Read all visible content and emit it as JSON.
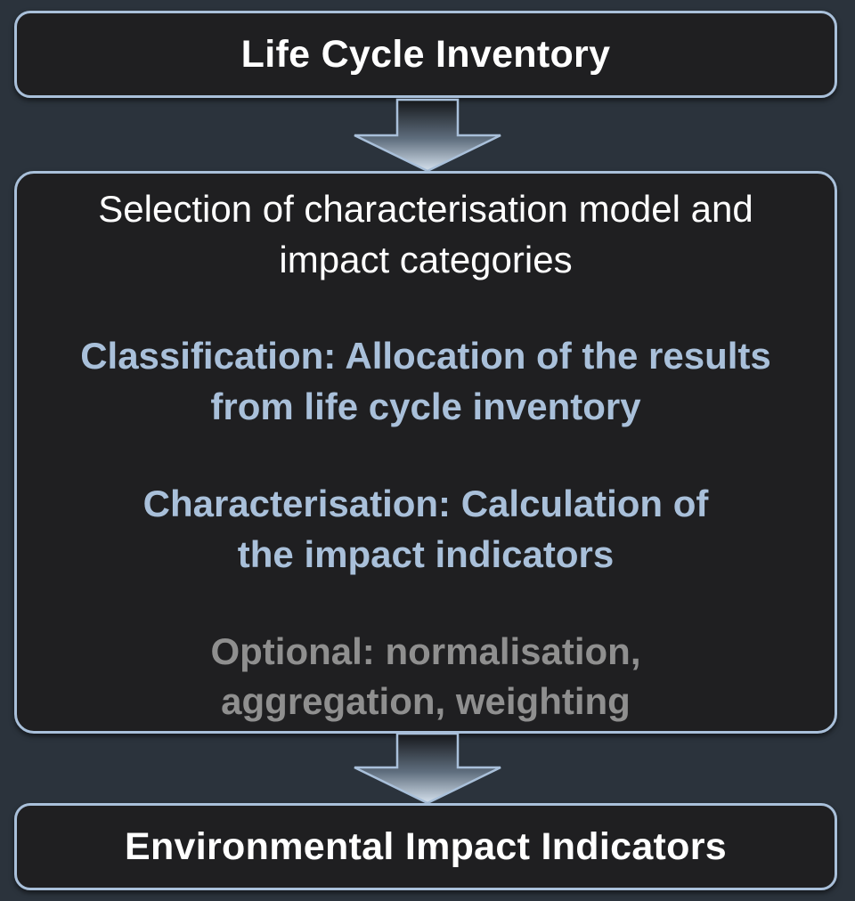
{
  "top_box": {
    "title": "Life Cycle Inventory"
  },
  "main_box": {
    "selection_line_1": "Selection of characterisation model and",
    "selection_line_2": "impact categories",
    "classification_line_1": "Classification: Allocation of the results",
    "classification_line_2": "from life cycle inventory",
    "characterisation_line_1": "Characterisation: Calculation of",
    "characterisation_line_2": "the impact indicators",
    "optional_line_1": "Optional: normalisation,",
    "optional_line_2": "aggregation, weighting"
  },
  "bottom_box": {
    "title": "Environmental Impact Indicators"
  },
  "colors": {
    "background": "#2b333c",
    "box_fill": "#1f1f21",
    "box_border": "#a9c0da",
    "accent_text": "#a9c0da",
    "muted_text": "#8f8f8f",
    "primary_text": "#ffffff"
  }
}
